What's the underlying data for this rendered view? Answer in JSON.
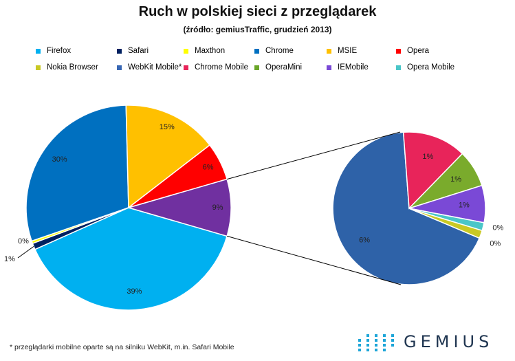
{
  "header": {
    "title": "Ruch w polskiej sieci z przeglądarek",
    "subtitle": "(źródło: gemiusTraffic, grudzień 2013)"
  },
  "chart_data": {
    "type": "pie",
    "title": "Ruch w polskiej sieci z przeglądarek",
    "subtitle": "(źródło: gemiusTraffic, grudzień 2013)",
    "legend_position": "top",
    "legend": [
      {
        "name": "Firefox",
        "color": "#00b0f0"
      },
      {
        "name": "Safari",
        "color": "#002060"
      },
      {
        "name": "Maxthon",
        "color": "#ffff00"
      },
      {
        "name": "Chrome",
        "color": "#0070c0"
      },
      {
        "name": "MSIE",
        "color": "#ffc000"
      },
      {
        "name": "Opera",
        "color": "#ff0000"
      },
      {
        "name": "Nokia Browser",
        "color": "#c9c924"
      },
      {
        "name": "WebKit Mobile*",
        "color": "#3867b4"
      },
      {
        "name": "Chrome Mobile",
        "color": "#e8245a"
      },
      {
        "name": "OperaMini",
        "color": "#6aa629"
      },
      {
        "name": "IEMobile",
        "color": "#7a49d6"
      },
      {
        "name": "Opera Mobile",
        "color": "#4ac6c8"
      }
    ],
    "main_pie": [
      {
        "name": "Firefox",
        "value": 39,
        "label": "39%",
        "color": "#00b0f0"
      },
      {
        "name": "Safari",
        "value": 1,
        "label": "1%",
        "color": "#002060"
      },
      {
        "name": "Maxthon",
        "value": 0.4,
        "label": "0%",
        "color": "#ffff00"
      },
      {
        "name": "Chrome",
        "value": 30,
        "label": "30%",
        "color": "#0070c0"
      },
      {
        "name": "MSIE",
        "value": 15,
        "label": "15%",
        "color": "#ffc000"
      },
      {
        "name": "Opera",
        "value": 6,
        "label": "6%",
        "color": "#ff0000"
      },
      {
        "name": "Mobile",
        "value": 9,
        "label": "9%",
        "color": "#7030a0"
      }
    ],
    "secondary_pie": [
      {
        "name": "WebKit Mobile*",
        "value": 6,
        "label": "6%",
        "color": "#2e62a8"
      },
      {
        "name": "Chrome Mobile",
        "value": 1.2,
        "label": "1%",
        "color": "#e8245a"
      },
      {
        "name": "OperaMini",
        "value": 0.7,
        "label": "1%",
        "color": "#7aab2c"
      },
      {
        "name": "IEMobile",
        "value": 0.7,
        "label": "1%",
        "color": "#7a49d6"
      },
      {
        "name": "Opera Mobile",
        "value": 0.15,
        "label": "0%",
        "color": "#4ac6c8"
      },
      {
        "name": "Nokia Browser",
        "value": 0.15,
        "label": "0%",
        "color": "#c9c924"
      }
    ]
  },
  "footnote": "* przeglądarki mobilne oparte są na silniku WebKit, m.in. Safari Mobile",
  "logo": {
    "text": "GEMIUS",
    "color": "#1f3550",
    "dot_color": "#1ea6d8"
  }
}
